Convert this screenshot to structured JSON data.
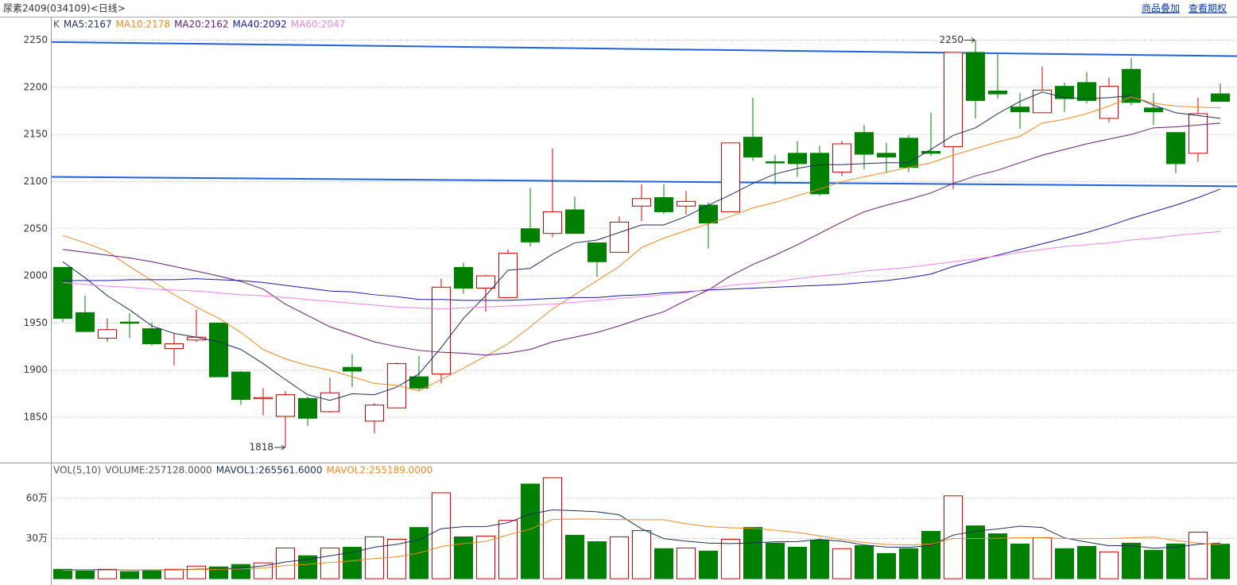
{
  "header": {
    "title": "尿素2409(034109)<日线>",
    "links": [
      "商品叠加",
      "查看期权"
    ]
  },
  "chart_data": [
    {
      "type": "candlestick",
      "legend_label": "K",
      "categories": [
        null,
        null,
        null,
        null,
        null,
        null,
        null,
        null,
        null,
        null,
        null,
        null,
        null,
        null,
        null,
        null,
        null,
        null,
        null,
        null,
        null,
        null,
        null,
        null,
        null,
        null,
        null,
        null,
        null,
        null,
        null,
        null,
        null,
        null,
        null,
        null,
        null,
        null,
        null,
        null,
        null,
        null,
        null,
        null,
        null,
        null,
        null,
        null,
        null,
        null,
        null,
        null,
        null
      ],
      "open": [
        2009,
        1961,
        1934,
        1951,
        1944,
        1923,
        1932,
        1950,
        1898,
        1870,
        1851,
        1870,
        1856,
        1903,
        1846,
        1860,
        1893,
        1896,
        2009,
        1987,
        1977,
        2050,
        2045,
        2070,
        2035,
        2025,
        2074,
        2083,
        2074,
        2075,
        2068,
        2147,
        2121,
        2130,
        2130,
        2110,
        2152,
        2130,
        2146,
        2132,
        2137,
        2237,
        2196,
        2179,
        2173,
        2201,
        2205,
        2167,
        2219,
        2178,
        2152,
        2130,
        2193
      ],
      "high": [
        2009,
        1979,
        1955,
        1960,
        1951,
        1939,
        1964,
        1950,
        1899,
        1881,
        1878,
        1872,
        1892,
        1917,
        1865,
        1908,
        1915,
        1997,
        2014,
        2001,
        2028,
        2093,
        2135,
        2084,
        2035,
        2063,
        2097,
        2097,
        2090,
        2078,
        2141,
        2189,
        2128,
        2143,
        2138,
        2143,
        2160,
        2141,
        2149,
        2173,
        2237,
        2250,
        2235,
        2194,
        2222,
        2205,
        2216,
        2210,
        2231,
        2194,
        2152,
        2189,
        2204
      ],
      "low": [
        1951,
        1941,
        1930,
        1934,
        1926,
        1905,
        1930,
        1893,
        1863,
        1852,
        1818,
        1841,
        1855,
        1882,
        1833,
        1860,
        1878,
        1886,
        1981,
        1962,
        1977,
        2031,
        2041,
        2045,
        1999,
        2025,
        2058,
        2066,
        2065,
        2029,
        2068,
        2122,
        2097,
        2105,
        2085,
        2106,
        2113,
        2109,
        2110,
        2127,
        2092,
        2167,
        2188,
        2156,
        2173,
        2174,
        2183,
        2163,
        2181,
        2160,
        2109,
        2121,
        2185
      ],
      "close": [
        1955,
        1941,
        1943,
        1950,
        1928,
        1928,
        1935,
        1893,
        1869,
        1871,
        1874,
        1849,
        1876,
        1899,
        1863,
        1907,
        1881,
        1988,
        1987,
        2000,
        2024,
        2036,
        2068,
        2045,
        2015,
        2057,
        2082,
        2068,
        2079,
        2056,
        2141,
        2126,
        2120,
        2119,
        2087,
        2140,
        2129,
        2126,
        2115,
        2130,
        2237,
        2186,
        2193,
        2174,
        2197,
        2188,
        2186,
        2201,
        2184,
        2174,
        2119,
        2172,
        2185
      ],
      "up_color": "#d40000",
      "down_color": "#008000",
      "ylim": [
        1802,
        2274
      ],
      "yticks": [
        1850,
        1900,
        1950,
        2000,
        2050,
        2100,
        2150,
        2200,
        2250
      ],
      "grid": true,
      "high_label": 2250,
      "low_label": 1818,
      "series": [
        {
          "name": "MA5:2167",
          "color": "#1c2f5e",
          "values": [
            2015,
            1998,
            1979,
            1964,
            1947,
            1939,
            1935,
            1930,
            1922,
            1907,
            1890,
            1874,
            1868,
            1875,
            1874,
            1882,
            1896,
            1924,
            1955,
            1979,
            2006,
            2008,
            2023,
            2035,
            2038,
            2046,
            2054,
            2054,
            2063,
            2075,
            2086,
            2098,
            2108,
            2114,
            2118,
            2118,
            2119,
            2120,
            2120,
            2134,
            2149,
            2157,
            2172,
            2185,
            2195,
            2189,
            2188,
            2189,
            2191,
            2181,
            2173,
            2170,
            2167
          ]
        },
        {
          "name": "MA10:2178",
          "color": "#f28a1e",
          "values": [
            2043,
            2035,
            2026,
            2010,
            1995,
            1980,
            1967,
            1955,
            1940,
            1922,
            1912,
            1905,
            1900,
            1893,
            1886,
            1884,
            1878,
            1890,
            1902,
            1915,
            1928,
            1946,
            1965,
            1980,
            1995,
            2010,
            2030,
            2040,
            2048,
            2055,
            2063,
            2072,
            2078,
            2085,
            2092,
            2100,
            2105,
            2110,
            2115,
            2120,
            2128,
            2135,
            2142,
            2148,
            2162,
            2166,
            2172,
            2180,
            2190,
            2183,
            2180,
            2179,
            2178
          ]
        },
        {
          "name": "MA20:2162",
          "color": "#6a1a78",
          "values": [
            2028,
            2025,
            2022,
            2019,
            2015,
            2010,
            2005,
            2000,
            1994,
            1986,
            1970,
            1958,
            1946,
            1938,
            1930,
            1925,
            1921,
            1919,
            1918,
            1916,
            1918,
            1922,
            1930,
            1935,
            1940,
            1947,
            1955,
            1962,
            1974,
            1985,
            2000,
            2012,
            2022,
            2033,
            2045,
            2057,
            2068,
            2075,
            2081,
            2088,
            2098,
            2106,
            2112,
            2120,
            2128,
            2134,
            2140,
            2145,
            2150,
            2157,
            2158,
            2160,
            2162
          ]
        },
        {
          "name": "MA40:2092",
          "color": "#1a1aa8",
          "values": [
            1995,
            1995,
            1995,
            1996,
            1996,
            1996,
            1997,
            1996,
            1995,
            1993,
            1990,
            1987,
            1984,
            1983,
            1980,
            1978,
            1975,
            1975,
            1974,
            1974,
            1974,
            1975,
            1976,
            1977,
            1977,
            1979,
            1980,
            1982,
            1983,
            1985,
            1986,
            1987,
            1988,
            1989,
            1990,
            1991,
            1993,
            1995,
            1998,
            2002,
            2010,
            2016,
            2022,
            2028,
            2034,
            2040,
            2046,
            2053,
            2061,
            2068,
            2075,
            2083,
            2092
          ]
        },
        {
          "name": "MA60:2047",
          "color": "#ee82ee",
          "values": [
            1993,
            1991,
            1989,
            1988,
            1986,
            1985,
            1984,
            1982,
            1980,
            1979,
            1977,
            1975,
            1973,
            1971,
            1969,
            1967,
            1966,
            1965,
            1966,
            1967,
            1968,
            1969,
            1970,
            1972,
            1974,
            1976,
            1978,
            1980,
            1982,
            1986,
            1990,
            1992,
            1994,
            1997,
            2000,
            2002,
            2005,
            2007,
            2009,
            2012,
            2015,
            2018,
            2021,
            2025,
            2028,
            2031,
            2033,
            2035,
            2038,
            2040,
            2043,
            2045,
            2047
          ]
        }
      ],
      "trend_lines": [
        {
          "color": "#1f62dc",
          "values": [
            2248,
            2233
          ]
        },
        {
          "color": "#1f62dc",
          "values": [
            2105,
            2095
          ]
        }
      ]
    },
    {
      "type": "volume",
      "legend_label": "VOL(5,10)",
      "volume_label": "VOLUME:257128.0000",
      "categories": [
        null,
        null,
        null,
        null,
        null,
        null,
        null,
        null,
        null,
        null,
        null,
        null,
        null,
        null,
        null,
        null,
        null,
        null,
        null,
        null,
        null,
        null,
        null,
        null,
        null,
        null,
        null,
        null,
        null,
        null,
        null,
        null,
        null,
        null,
        null,
        null,
        null,
        null,
        null,
        null,
        null,
        null,
        null,
        null,
        null,
        null,
        null,
        null,
        null,
        null,
        null,
        null,
        null
      ],
      "values": [
        70000,
        65000,
        70000,
        53000,
        65000,
        70000,
        94000,
        88000,
        106000,
        118000,
        229000,
        171000,
        229000,
        235000,
        312000,
        294000,
        382000,
        641000,
        312000,
        318000,
        435000,
        706000,
        753000,
        324000,
        276000,
        312000,
        359000,
        224000,
        229000,
        206000,
        294000,
        382000,
        265000,
        235000,
        288000,
        224000,
        247000,
        188000,
        224000,
        353000,
        618000,
        394000,
        335000,
        259000,
        306000,
        224000,
        241000,
        200000,
        265000,
        212000,
        259000,
        347000,
        257128
      ],
      "ylim": [
        -47000,
        860000
      ],
      "yticks": [
        {
          "value": 300000,
          "label": "30万"
        },
        {
          "value": 600000,
          "label": "60万"
        }
      ],
      "grid": true,
      "series": [
        {
          "name": "MAVOL1:265561.6000",
          "color": "#1c2f5e",
          "values": [
            65000,
            66000,
            67000,
            64000,
            65000,
            65000,
            71000,
            74000,
            79000,
            95000,
            125000,
            144000,
            171000,
            196000,
            235000,
            256000,
            290000,
            373000,
            388000,
            389000,
            418000,
            482000,
            513000,
            507000,
            499000,
            476000,
            372000,
            299000,
            280000,
            266000,
            262000,
            267000,
            275000,
            277000,
            293000,
            279000,
            252000,
            236000,
            234000,
            247000,
            325000,
            355000,
            371000,
            392000,
            382000,
            304000,
            273000,
            246000,
            247000,
            228000,
            235000,
            257000,
            265561.6
          ]
        },
        {
          "name": "MAVOL2:255189.0000",
          "color": "#f28a1e",
          "values": [
            62000,
            63000,
            64000,
            64000,
            64000,
            65000,
            68000,
            70000,
            72000,
            80000,
            98000,
            107000,
            121000,
            133000,
            150000,
            163000,
            192000,
            240000,
            262000,
            278000,
            327000,
            369000,
            442000,
            445000,
            444000,
            441000,
            440000,
            440000,
            410000,
            388000,
            380000,
            375000,
            361000,
            345000,
            320000,
            292000,
            270000,
            255000,
            252000,
            258000,
            300000,
            300000,
            302000,
            305000,
            305000,
            300000,
            299000,
            300000,
            305000,
            310000,
            285000,
            265000,
            255189
          ]
        }
      ]
    }
  ]
}
